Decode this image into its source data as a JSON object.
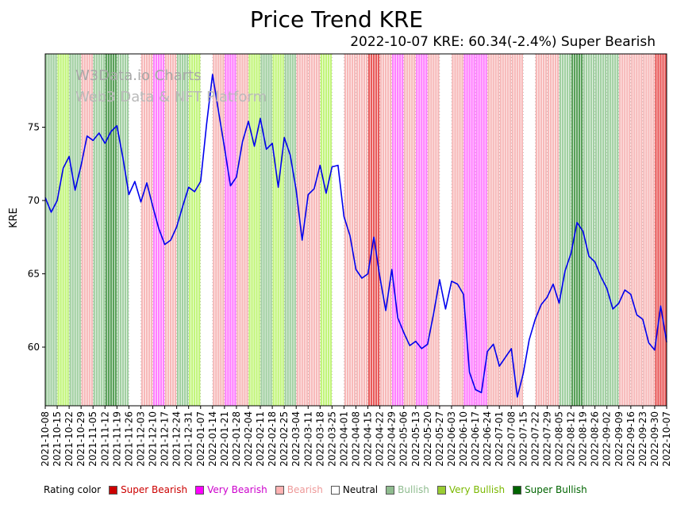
{
  "title": "Price Trend KRE",
  "subtitle": "2022-10-07 KRE: 60.34(-2.4%) Super Bearish",
  "watermark": {
    "line1": "W3Data.io Charts",
    "line2": "Web3 Data & NFT Platform"
  },
  "legend": {
    "label": "Rating color",
    "items": [
      {
        "label": "Super Bearish",
        "color": "#cc0000",
        "text_color": "#cc0000"
      },
      {
        "label": "Very Bearish",
        "color": "#ff00ff",
        "text_color": "#cc00cc"
      },
      {
        "label": "Bearish",
        "color": "#ffb3b3",
        "text_color": "#ee9999"
      },
      {
        "label": "Neutral",
        "color": "#ffffff",
        "text_color": "#000000"
      },
      {
        "label": "Bullish",
        "color": "#8fbc8f",
        "text_color": "#8fbc8f"
      },
      {
        "label": "Very Bullish",
        "color": "#9acd32",
        "text_color": "#7ab800"
      },
      {
        "label": "Super Bullish",
        "color": "#006400",
        "text_color": "#006400"
      }
    ]
  },
  "chart_data": {
    "type": "line",
    "title": "Price Trend KRE",
    "xlabel": "",
    "ylabel": "KRE",
    "ylim": [
      56,
      80
    ],
    "yticks": [
      60,
      65,
      70,
      75
    ],
    "line_color": "#0000ee",
    "grid": "vertical-dashed-weekly",
    "legend_position": "bottom",
    "points_per_interval": 2,
    "x": [
      "2021-10-08",
      "2021-10-15",
      "2021-10-22",
      "2021-10-29",
      "2021-11-05",
      "2021-11-12",
      "2021-11-19",
      "2021-11-26",
      "2021-12-03",
      "2021-12-10",
      "2021-12-17",
      "2021-12-24",
      "2021-12-31",
      "2022-01-07",
      "2022-01-14",
      "2022-01-21",
      "2022-01-28",
      "2022-02-04",
      "2022-02-11",
      "2022-02-18",
      "2022-02-25",
      "2022-03-04",
      "2022-03-11",
      "2022-03-18",
      "2022-03-25",
      "2022-04-01",
      "2022-04-08",
      "2022-04-15",
      "2022-04-22",
      "2022-04-29",
      "2022-05-06",
      "2022-05-13",
      "2022-05-20",
      "2022-05-27",
      "2022-06-03",
      "2022-06-10",
      "2022-06-17",
      "2022-06-24",
      "2022-07-01",
      "2022-07-08",
      "2022-07-15",
      "2022-07-22",
      "2022-07-29",
      "2022-08-05",
      "2022-08-12",
      "2022-08-19",
      "2022-08-26",
      "2022-09-02",
      "2022-09-09",
      "2022-09-16",
      "2022-09-23",
      "2022-09-30",
      "2022-10-07"
    ],
    "series": [
      {
        "name": "KRE",
        "values": [
          70.2,
          69.2,
          70.0,
          72.2,
          73.0,
          70.7,
          72.4,
          74.4,
          74.1,
          74.6,
          73.9,
          74.7,
          75.1,
          72.9,
          70.4,
          71.3,
          69.9,
          71.2,
          69.6,
          68.1,
          67.0,
          67.3,
          68.2,
          69.6,
          70.9,
          70.6,
          71.3,
          75.2,
          78.6,
          76.1,
          73.6,
          71.0,
          71.6,
          74.0,
          75.4,
          73.7,
          75.6,
          73.5,
          73.9,
          70.9,
          74.3,
          73.1,
          70.7,
          67.3,
          70.4,
          70.8,
          72.4,
          70.5,
          72.3,
          72.4,
          68.9,
          67.6,
          65.3,
          64.7,
          65.0,
          67.5,
          64.8,
          62.5,
          65.3,
          62.0,
          61.0,
          60.1,
          60.4,
          59.9,
          60.2,
          62.3,
          64.6,
          62.6,
          64.5,
          64.3,
          63.6,
          58.3,
          57.1,
          56.9,
          59.7,
          60.2,
          58.7,
          59.3,
          59.9,
          56.6,
          58.2,
          60.5,
          61.9,
          62.9,
          63.4,
          64.3,
          63.0,
          65.2,
          66.4,
          68.5,
          67.9,
          66.2,
          65.8,
          64.8,
          64.0,
          62.6,
          63.0,
          63.9,
          63.6,
          62.2,
          61.9,
          60.3,
          59.8,
          62.8,
          60.34
        ]
      }
    ],
    "rating_colors": {
      "super-bearish": "#dd0000",
      "very-bearish": "#ff00ff",
      "bearish": "#f08080",
      "neutral": "#ffffff",
      "bullish": "#55aa55",
      "very-bullish": "#99ee22",
      "super-bullish": "#117711"
    },
    "interval_ratings": [
      "bullish",
      "very-bullish",
      "bullish",
      "bearish",
      "bullish",
      "super-bullish",
      "bullish",
      "neutral",
      "bearish",
      "very-bearish",
      "bearish",
      "bullish",
      "very-bullish",
      "neutral",
      "bearish",
      "very-bearish",
      "bearish",
      "very-bullish",
      "bullish",
      "very-bullish",
      "bullish",
      "bearish",
      "bearish",
      "very-bullish",
      "neutral",
      "bearish",
      "bearish",
      "super-bearish",
      "bearish",
      "very-bearish",
      "bearish",
      "very-bearish",
      "bearish",
      "neutral",
      "bearish",
      "very-bearish",
      "very-bearish",
      "bearish",
      "bearish",
      "bearish",
      "neutral",
      "bearish",
      "bearish",
      "bullish",
      "super-bullish",
      "bullish",
      "bullish",
      "bullish",
      "bearish",
      "bearish",
      "bearish",
      "super-bearish"
    ]
  }
}
